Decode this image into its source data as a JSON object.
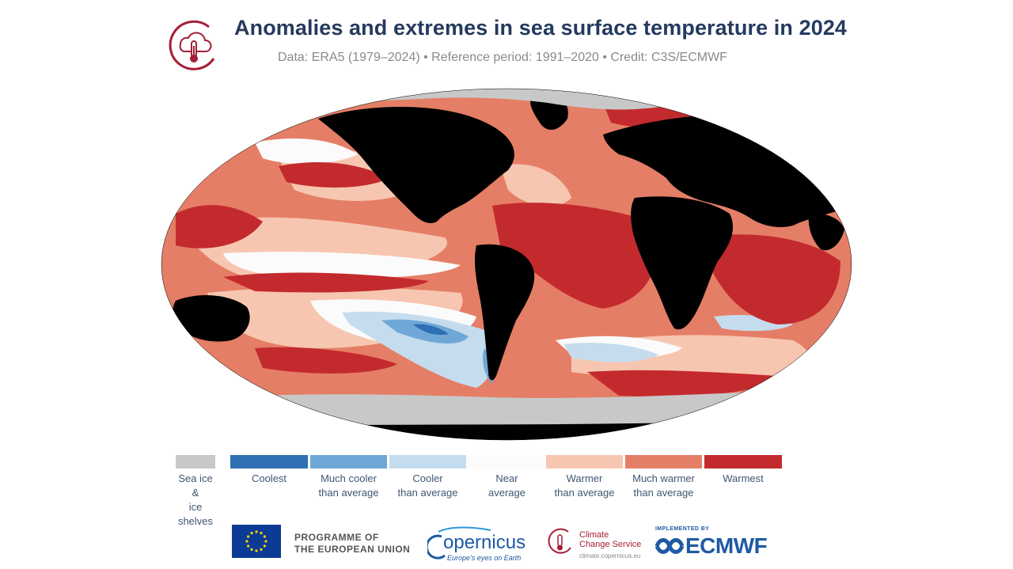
{
  "header": {
    "title": "Anomalies and extremes in sea surface temperature in 2024",
    "subtitle": "Data: ERA5 (1979–2024) • Reference period: 1991–2020 • Credit: C3S/ECMWF",
    "logo_icon": "cloud-thermometer-icon"
  },
  "colors": {
    "land": "#000000",
    "sea_ice": "#c8c8c8",
    "coolest": "#2f6fb3",
    "much_cooler": "#6fa7d7",
    "cooler": "#c5dcee",
    "near_average": "#fbfbfb",
    "warmer": "#f7c6b1",
    "much_warmer": "#e57e66",
    "warmest": "#c32a2e",
    "title": "#243a5e",
    "brand_red": "#a51e37",
    "brand_blue": "#1d5aa5"
  },
  "legend": [
    {
      "label": "Sea ice &\nice shelves",
      "color": "#c8c8c8"
    },
    {
      "label": "Coolest",
      "color": "#2f6fb3"
    },
    {
      "label": "Much cooler\nthan average",
      "color": "#6fa7d7"
    },
    {
      "label": "Cooler\nthan average",
      "color": "#c5dcee"
    },
    {
      "label": "Near\naverage",
      "color": "#fbfbfb"
    },
    {
      "label": "Warmer\nthan average",
      "color": "#f7c6b1"
    },
    {
      "label": "Much warmer\nthan average",
      "color": "#e57e66"
    },
    {
      "label": "Warmest",
      "color": "#c32a2e"
    }
  ],
  "footer": {
    "eu_text": "PROGRAMME OF\nTHE EUROPEAN UNION",
    "copernicus_name": "opernicus",
    "copernicus_tagline": "Europe's eyes on Earth",
    "c3s_name": "Climate\nChange Service",
    "c3s_url": "climate.copernicus.eu",
    "ecmwf_implemented": "IMPLEMENTED BY",
    "ecmwf_name": "ECMWF"
  }
}
